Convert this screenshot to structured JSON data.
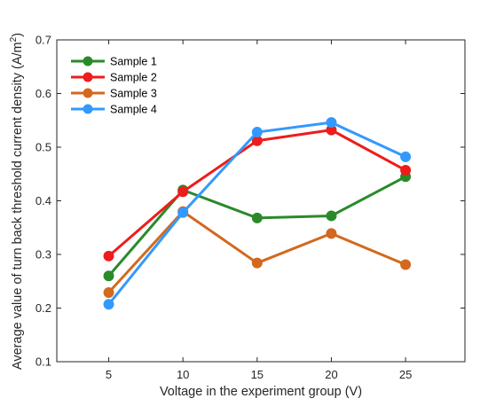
{
  "chart_data": {
    "type": "line",
    "title": "",
    "xlabel": "Voltage in the experiment group (V)",
    "ylabel": "Average value of turn back threshold current density (A/m²)",
    "ylabel_parts": {
      "main": "Average value of turn back threshold current density (A/m",
      "sup": "2",
      "end": ")"
    },
    "x": [
      5,
      10,
      15,
      20,
      25
    ],
    "xticks": [
      "5",
      "10",
      "15",
      "20",
      "25"
    ],
    "xlim": [
      1.5,
      29
    ],
    "ylim": [
      0.1,
      0.7
    ],
    "yticks": [
      "0.1",
      "0.2",
      "0.3",
      "0.4",
      "0.5",
      "0.6",
      "0.7"
    ],
    "grid": false,
    "legend_position": "top-left",
    "series": [
      {
        "name": "Sample 1",
        "color": "#2a8a2a",
        "values": [
          0.26,
          0.42,
          0.368,
          0.372,
          0.445
        ]
      },
      {
        "name": "Sample 2",
        "color": "#ee1c1c",
        "values": [
          0.297,
          0.417,
          0.512,
          0.532,
          0.457
        ]
      },
      {
        "name": "Sample 3",
        "color": "#d2691e",
        "values": [
          0.229,
          0.38,
          0.284,
          0.339,
          0.281
        ]
      },
      {
        "name": "Sample 4",
        "color": "#3399ff",
        "values": [
          0.207,
          0.378,
          0.528,
          0.546,
          0.482
        ]
      }
    ]
  }
}
